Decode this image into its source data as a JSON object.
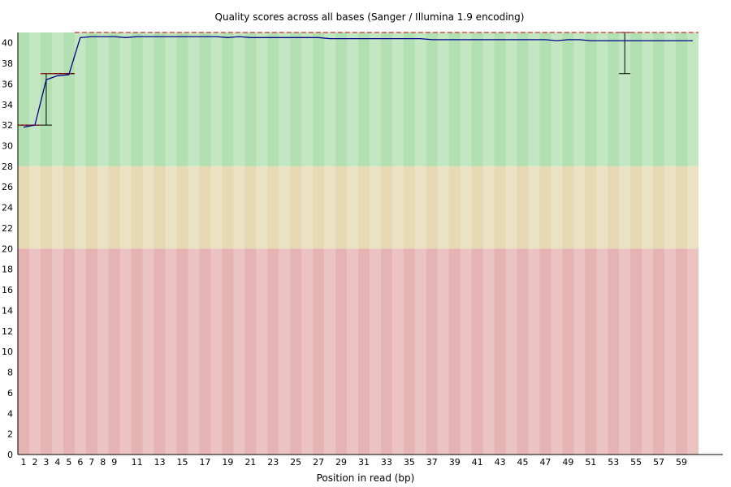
{
  "chart_data": {
    "type": "line",
    "title": "Quality scores across all bases (Sanger / Illumina 1.9 encoding)",
    "xlabel": "Position in read (bp)",
    "ylabel": "",
    "x_tick_labels": [
      "1",
      "2",
      "3",
      "4",
      "5",
      "6",
      "7",
      "8",
      "9",
      "11",
      "13",
      "15",
      "17",
      "19",
      "21",
      "23",
      "25",
      "27",
      "29",
      "31",
      "33",
      "35",
      "37",
      "39",
      "41",
      "43",
      "45",
      "47",
      "49",
      "51",
      "53",
      "55",
      "57",
      "59"
    ],
    "y_ticks": [
      0,
      2,
      4,
      6,
      8,
      10,
      12,
      14,
      16,
      18,
      20,
      22,
      24,
      26,
      28,
      30,
      32,
      34,
      36,
      38,
      40
    ],
    "ylim": [
      0,
      41
    ],
    "quality_bands": [
      {
        "range": [
          28,
          41
        ],
        "color": "#b3e0b3"
      },
      {
        "range": [
          20,
          28
        ],
        "color": "#e6d9b3"
      },
      {
        "range": [
          0,
          20
        ],
        "color": "#e6b3b3"
      }
    ],
    "series": [
      {
        "color": "#00008b",
        "values": [
          31.8,
          32.0,
          36.4,
          36.8,
          36.9,
          40.5,
          40.6,
          40.6,
          40.6,
          40.5,
          40.6,
          40.6,
          40.6,
          40.6,
          40.6,
          40.6,
          40.6,
          40.6,
          40.5,
          40.6,
          40.5,
          40.5,
          40.5,
          40.5,
          40.5,
          40.5,
          40.5,
          40.4,
          40.4,
          40.4,
          40.4,
          40.4,
          40.4,
          40.4,
          40.4,
          40.4,
          40.3,
          40.3,
          40.3,
          40.3,
          40.3,
          40.3,
          40.3,
          40.3,
          40.3,
          40.3,
          40.3,
          40.2,
          40.3,
          40.3,
          40.2,
          40.2,
          40.2,
          40.2,
          40.2,
          40.2,
          40.2,
          40.2,
          40.2,
          40.2
        ]
      }
    ],
    "boxes": [
      {
        "pos": 1,
        "lower": 32,
        "upper": 32
      },
      {
        "pos": 2,
        "lower": 32,
        "upper": 32
      },
      {
        "pos": 3,
        "lower": 32,
        "upper": 37
      },
      {
        "pos": 4,
        "lower": 37,
        "upper": 37
      },
      {
        "pos": 5,
        "lower": 37,
        "upper": 37
      },
      {
        "pos": 54,
        "lower": 37,
        "upper": 41
      }
    ],
    "upper_line_value": 41,
    "upper_line_start": 6,
    "upper_line_end": 60
  }
}
